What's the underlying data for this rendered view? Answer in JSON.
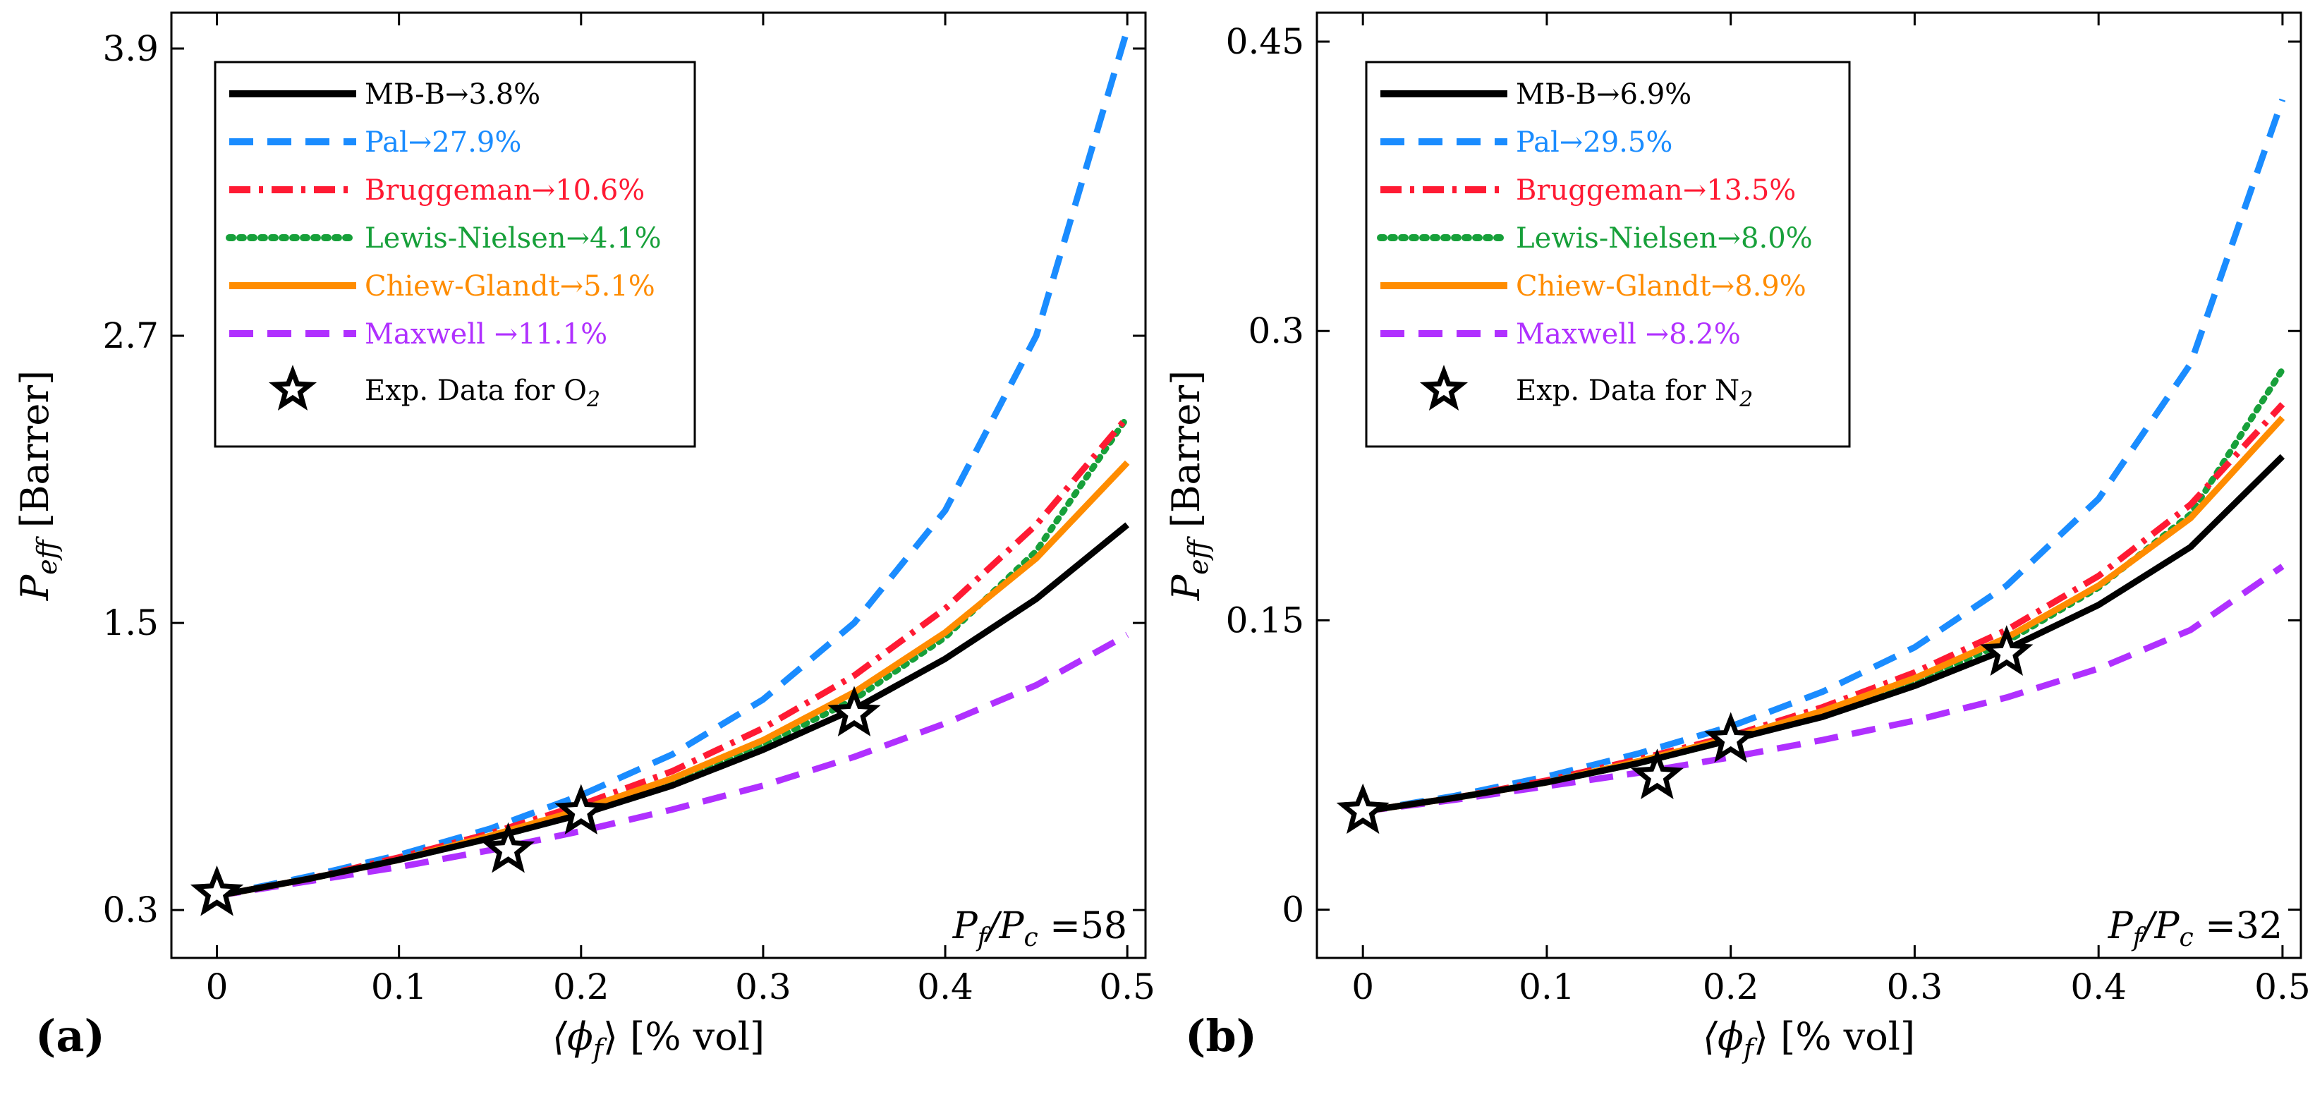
{
  "chart_data": [
    {
      "type": "line",
      "panel_label": "(a)",
      "ylabel": "P_eff [Barrer]",
      "ylabel_main": "P",
      "ylabel_sub": "eff",
      "ylabel_unit": " [Barrer]",
      "xlabel": "⟨ϕ_f⟩ [% vol]",
      "xlabel_main": "⟨ϕ",
      "xlabel_sub": "f",
      "xlabel_rest": "⟩ [% vol]",
      "xlim": [
        -0.025,
        0.51
      ],
      "ylim": [
        0.1,
        4.05
      ],
      "xticks": [
        0,
        0.1,
        0.2,
        0.3,
        0.4,
        0.5
      ],
      "xtick_labels": [
        "0",
        "0.1",
        "0.2",
        "0.3",
        "0.4",
        "0.5"
      ],
      "yticks": [
        0.3,
        1.5,
        2.7,
        3.9
      ],
      "ytick_labels": [
        "0.3",
        "1.5",
        "2.7",
        "3.9"
      ],
      "annotation": "P_f/P_c =58",
      "annotation_parts": {
        "p1": "P",
        "s1": "f",
        "mid": "/P",
        "s2": "c",
        "val": " =58"
      },
      "experimental_label": "Exp. Data for O",
      "experimental_gas_sub": "2",
      "experimental_data": {
        "x": [
          0,
          0.16,
          0.2,
          0.35
        ],
        "y": [
          0.37,
          0.55,
          0.71,
          1.12
        ]
      },
      "x": [
        0,
        0.05,
        0.1,
        0.15,
        0.2,
        0.25,
        0.3,
        0.35,
        0.4,
        0.45,
        0.5
      ],
      "series": [
        {
          "name": "MB-B",
          "error": "→3.8%",
          "color": "#000000",
          "style": "solid",
          "values": [
            0.36,
            0.43,
            0.51,
            0.6,
            0.7,
            0.82,
            0.97,
            1.14,
            1.35,
            1.6,
            1.91
          ]
        },
        {
          "name": "Pal",
          "error": "→27.9%",
          "color": "#1a8cff",
          "style": "dash",
          "values": [
            0.36,
            0.44,
            0.53,
            0.64,
            0.78,
            0.95,
            1.18,
            1.5,
            1.97,
            2.7,
            3.98
          ]
        },
        {
          "name": "Bruggeman",
          "error": "→10.6%",
          "color": "#ff1a33",
          "style": "dashdot",
          "values": [
            0.36,
            0.43,
            0.52,
            0.62,
            0.74,
            0.88,
            1.06,
            1.28,
            1.56,
            1.91,
            2.36
          ]
        },
        {
          "name": "Lewis-Nielsen",
          "error": "→4.1%",
          "color": "#17a03a",
          "style": "dot",
          "values": [
            0.36,
            0.43,
            0.51,
            0.6,
            0.7,
            0.83,
            0.99,
            1.18,
            1.44,
            1.8,
            2.36
          ]
        },
        {
          "name": "Chiew-Glandt",
          "error": "→5.1%",
          "color": "#ff8c00",
          "style": "solid",
          "values": [
            0.36,
            0.43,
            0.51,
            0.61,
            0.72,
            0.85,
            1.01,
            1.21,
            1.46,
            1.77,
            2.17
          ]
        },
        {
          "name": "Maxwell ",
          "error": "→11.1%",
          "color": "#b030ff",
          "style": "dash",
          "values": [
            0.36,
            0.42,
            0.48,
            0.55,
            0.63,
            0.72,
            0.82,
            0.94,
            1.08,
            1.24,
            1.45
          ]
        }
      ]
    },
    {
      "type": "line",
      "panel_label": "(b)",
      "ylabel": "P_eff [Barrer]",
      "ylabel_main": "P",
      "ylabel_sub": "eff",
      "ylabel_unit": " [Barrer]",
      "xlabel": "⟨ϕ_f⟩ [% vol]",
      "xlabel_main": "⟨ϕ",
      "xlabel_sub": "f",
      "xlabel_rest": "⟩ [% vol]",
      "xlim": [
        -0.025,
        0.51
      ],
      "ylim": [
        -0.025,
        0.465
      ],
      "xticks": [
        0,
        0.1,
        0.2,
        0.3,
        0.4,
        0.5
      ],
      "xtick_labels": [
        "0",
        "0.1",
        "0.2",
        "0.3",
        "0.4",
        "0.5"
      ],
      "yticks": [
        0,
        0.15,
        0.3,
        0.45
      ],
      "ytick_labels": [
        "0",
        "0.15",
        "0.3",
        "0.45"
      ],
      "annotation": "P_f/P_c =32",
      "annotation_parts": {
        "p1": "P",
        "s1": "f",
        "mid": "/P",
        "s2": "c",
        "val": " =32"
      },
      "experimental_label": "Exp. Data for N",
      "experimental_gas_sub": "2",
      "experimental_data": {
        "x": [
          0,
          0.16,
          0.2,
          0.35
        ],
        "y": [
          0.051,
          0.069,
          0.088,
          0.133
        ]
      },
      "x": [
        0,
        0.05,
        0.1,
        0.15,
        0.2,
        0.25,
        0.3,
        0.35,
        0.4,
        0.45,
        0.5
      ],
      "series": [
        {
          "name": "MB-B",
          "error": "→6.9%",
          "color": "#000000",
          "style": "solid",
          "values": [
            0.051,
            0.058,
            0.066,
            0.076,
            0.088,
            0.1,
            0.116,
            0.135,
            0.158,
            0.188,
            0.235
          ]
        },
        {
          "name": "Pal",
          "error": "→29.5%",
          "color": "#1a8cff",
          "style": "dash",
          "values": [
            0.051,
            0.059,
            0.069,
            0.081,
            0.095,
            0.113,
            0.136,
            0.168,
            0.213,
            0.283,
            0.42
          ]
        },
        {
          "name": "Bruggeman",
          "error": "→13.5%",
          "color": "#ff1a33",
          "style": "dashdot",
          "values": [
            0.051,
            0.058,
            0.067,
            0.078,
            0.09,
            0.105,
            0.123,
            0.145,
            0.173,
            0.21,
            0.262
          ]
        },
        {
          "name": "Lewis-Nielsen",
          "error": "→8.0%",
          "color": "#17a03a",
          "style": "dot",
          "values": [
            0.051,
            0.058,
            0.066,
            0.076,
            0.088,
            0.102,
            0.118,
            0.139,
            0.167,
            0.205,
            0.28
          ]
        },
        {
          "name": "Chiew-Glandt",
          "error": "→8.9%",
          "color": "#ff8c00",
          "style": "solid",
          "values": [
            0.051,
            0.058,
            0.066,
            0.077,
            0.089,
            0.103,
            0.12,
            0.141,
            0.168,
            0.203,
            0.255
          ]
        },
        {
          "name": "Maxwell ",
          "error": "→8.2%",
          "color": "#b030ff",
          "style": "dash",
          "values": [
            0.051,
            0.057,
            0.064,
            0.071,
            0.079,
            0.088,
            0.098,
            0.11,
            0.125,
            0.145,
            0.178
          ]
        }
      ]
    }
  ]
}
